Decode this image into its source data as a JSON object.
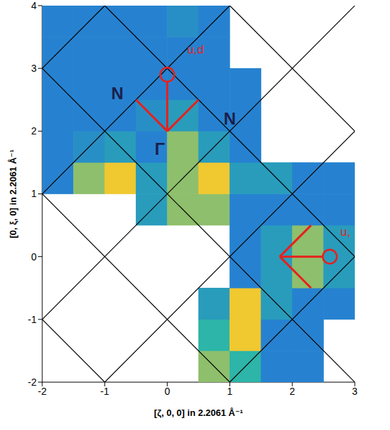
{
  "chart_data": {
    "type": "heatmap",
    "xlabel": "[ζ, 0, 0] in 2.2061 Å⁻¹",
    "ylabel": "[0, ξ, 0] in 2.2061 Å⁻¹",
    "xlim": [
      -2,
      3
    ],
    "ylim": [
      -2,
      4
    ],
    "xticks": [
      -2,
      -1,
      0,
      1,
      2,
      3
    ],
    "yticks": [
      -2,
      -1,
      0,
      1,
      2,
      3,
      4
    ],
    "heatmap": {
      "x": [
        -1.75,
        -1.25,
        -0.75,
        -0.25,
        0.25,
        0.75,
        1.25,
        1.75,
        2.25,
        2.75
      ],
      "y": [
        -1.75,
        -1.25,
        -0.75,
        -0.25,
        0.25,
        0.75,
        1.25,
        1.75,
        2.25,
        2.75,
        3.25,
        3.75
      ],
      "values": [
        [
          null,
          null,
          null,
          null,
          null,
          0.5,
          0.4,
          0.2,
          0.2,
          null
        ],
        [
          null,
          null,
          null,
          null,
          null,
          0.4,
          0.6,
          0.2,
          0.2,
          null
        ],
        [
          null,
          null,
          null,
          null,
          null,
          0.3,
          0.6,
          0.3,
          0.2,
          0.2
        ],
        [
          null,
          null,
          null,
          null,
          null,
          null,
          0.2,
          0.3,
          0.5,
          0.3
        ],
        [
          null,
          null,
          null,
          null,
          null,
          null,
          0.2,
          0.3,
          0.5,
          0.3
        ],
        [
          null,
          null,
          null,
          0.3,
          0.5,
          0.5,
          0.2,
          0.2,
          0.2,
          0.2
        ],
        [
          0.2,
          0.5,
          0.6,
          0.3,
          0.5,
          0.6,
          0.3,
          0.3,
          0.2,
          0.2
        ],
        [
          0.2,
          0.25,
          0.3,
          0.2,
          0.5,
          0.3,
          0.2,
          null,
          null,
          null
        ],
        [
          0.2,
          0.2,
          0.2,
          0.25,
          0.3,
          0.2,
          0.2,
          null,
          null,
          null
        ],
        [
          0.2,
          0.2,
          0.2,
          0.2,
          0.2,
          0.2,
          0.2,
          null,
          null,
          null
        ],
        [
          0.2,
          0.2,
          0.2,
          0.2,
          0.2,
          0.2,
          null,
          null,
          null,
          null
        ],
        [
          0.2,
          0.2,
          0.2,
          0.2,
          0.25,
          0.2,
          null,
          null,
          null,
          null
        ]
      ],
      "color_range": [
        0,
        1
      ]
    },
    "zone_lines": {
      "sum": [
        -3,
        -1,
        1,
        3,
        5
      ],
      "difference": [
        -5,
        -3,
        -1,
        1,
        3
      ]
    },
    "annotations": [
      {
        "text": "N",
        "x": -0.8,
        "y": 2.6,
        "color": "#1a1f4d"
      },
      {
        "text": "N",
        "x": 1.0,
        "y": 2.2,
        "color": "#1a1f4d"
      },
      {
        "text": "Γ",
        "x": -0.12,
        "y": 1.72,
        "color": "#1a1f4d"
      },
      {
        "text": "u,d",
        "x": 0.45,
        "y": 3.3,
        "color": "#e8201c"
      },
      {
        "text": "u,",
        "x": 2.85,
        "y": 0.4,
        "color": "#e8201c"
      }
    ],
    "vectors": [
      {
        "from": [
          0,
          2
        ],
        "to": [
          0.5,
          2.5
        ]
      },
      {
        "from": [
          0,
          2
        ],
        "to": [
          -0.5,
          2.5
        ]
      },
      {
        "from": [
          0,
          2
        ],
        "to": [
          0,
          2.78
        ]
      },
      {
        "from": [
          1.8,
          0
        ],
        "to": [
          2.3,
          0.5
        ]
      },
      {
        "from": [
          1.8,
          0
        ],
        "to": [
          2.3,
          -0.5
        ]
      },
      {
        "from": [
          1.8,
          0
        ],
        "to": [
          2.48,
          0
        ]
      }
    ],
    "circles": [
      {
        "x": 0,
        "y": 2.9
      },
      {
        "x": 2.6,
        "y": 0
      }
    ],
    "color": "#e8201c"
  }
}
